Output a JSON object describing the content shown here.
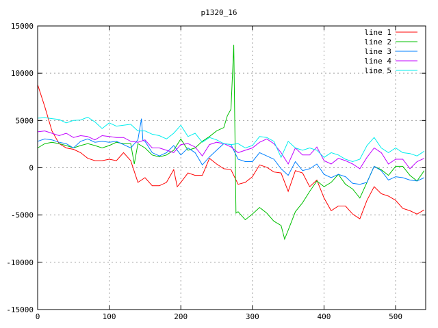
{
  "chart_data": {
    "type": "line",
    "title": "p1320_16",
    "xlabel": "",
    "ylabel": "",
    "xlim": [
      0,
      542
    ],
    "ylim": [
      -15000,
      15000
    ],
    "xticks": [
      0,
      100,
      200,
      300,
      400,
      500
    ],
    "yticks": [
      -15000,
      -10000,
      -5000,
      0,
      5000,
      10000,
      15000
    ],
    "grid": true,
    "legend_position": "top-right",
    "series": [
      {
        "name": "line 1",
        "color": "#ff0000",
        "x": [
          0,
          10,
          20,
          30,
          40,
          50,
          60,
          70,
          80,
          90,
          100,
          110,
          120,
          130,
          140,
          150,
          160,
          170,
          180,
          190,
          195,
          200,
          210,
          220,
          230,
          240,
          250,
          260,
          270,
          280,
          290,
          300,
          310,
          320,
          330,
          340,
          350,
          360,
          370,
          380,
          390,
          400,
          410,
          420,
          430,
          440,
          450,
          460,
          470,
          480,
          490,
          500,
          510,
          520,
          530,
          540
        ],
        "y": [
          8800,
          6450,
          3900,
          2550,
          2100,
          1950,
          1600,
          1000,
          750,
          750,
          900,
          750,
          1600,
          750,
          -1550,
          -1050,
          -1900,
          -1900,
          -1550,
          -200,
          -2000,
          -1550,
          -550,
          -800,
          -800,
          1000,
          400,
          -100,
          -200,
          -1750,
          -1550,
          -950,
          300,
          50,
          -450,
          -550,
          -2500,
          -300,
          -550,
          -2000,
          -1300,
          -3200,
          -4550,
          -4050,
          -4050,
          -4900,
          -5400,
          -3450,
          -2000,
          -2750,
          -3000,
          -3450,
          -4300,
          -4550,
          -4900,
          -4450
        ]
      },
      {
        "name": "line 2",
        "color": "#00c000",
        "x": [
          0,
          10,
          20,
          30,
          40,
          50,
          60,
          70,
          80,
          90,
          100,
          110,
          120,
          130,
          135,
          140,
          150,
          160,
          170,
          180,
          190,
          200,
          210,
          220,
          230,
          240,
          250,
          260,
          265,
          270,
          274,
          277,
          280,
          290,
          300,
          310,
          320,
          330,
          340,
          345,
          350,
          360,
          370,
          380,
          390,
          400,
          410,
          420,
          430,
          440,
          450,
          460,
          470,
          480,
          490,
          500,
          510,
          520,
          530,
          540
        ],
        "y": [
          2100,
          2550,
          2700,
          2550,
          2350,
          2100,
          2350,
          2550,
          2350,
          2100,
          2350,
          2700,
          2550,
          2550,
          400,
          2550,
          2100,
          1350,
          1150,
          1350,
          1850,
          3050,
          1850,
          2100,
          2800,
          3300,
          3900,
          4250,
          5500,
          6200,
          13000,
          -4800,
          -4650,
          -5500,
          -4900,
          -4200,
          -4800,
          -5650,
          -6100,
          -7550,
          -6600,
          -4650,
          -3700,
          -2500,
          -1400,
          -2000,
          -1550,
          -700,
          -1750,
          -2250,
          -3200,
          -1550,
          150,
          -200,
          -800,
          150,
          150,
          -800,
          -1400,
          -300
        ]
      },
      {
        "name": "line 3",
        "color": "#0080ff",
        "x": [
          0,
          10,
          20,
          30,
          40,
          50,
          60,
          70,
          80,
          90,
          100,
          110,
          120,
          130,
          140,
          145,
          147,
          150,
          160,
          170,
          180,
          190,
          200,
          210,
          220,
          230,
          240,
          250,
          260,
          270,
          280,
          290,
          300,
          310,
          320,
          330,
          340,
          350,
          360,
          370,
          380,
          390,
          400,
          410,
          420,
          430,
          440,
          450,
          460,
          470,
          480,
          490,
          500,
          510,
          520,
          530,
          540
        ],
        "y": [
          2800,
          3050,
          2950,
          2700,
          2550,
          2100,
          2800,
          3050,
          2700,
          2800,
          2700,
          2800,
          2450,
          2100,
          2950,
          5200,
          2900,
          2800,
          1600,
          1250,
          1600,
          2350,
          1350,
          2100,
          1600,
          300,
          1150,
          1850,
          2550,
          2450,
          900,
          650,
          650,
          1600,
          1250,
          900,
          -100,
          -800,
          650,
          -300,
          -100,
          400,
          -700,
          -1050,
          -700,
          -950,
          -1650,
          -1750,
          -1550,
          150,
          -300,
          -1300,
          -950,
          -1050,
          -1300,
          -1400,
          -1050
        ]
      },
      {
        "name": "line 4",
        "color": "#c000ff",
        "x": [
          0,
          10,
          20,
          30,
          40,
          50,
          60,
          70,
          80,
          90,
          100,
          110,
          120,
          130,
          140,
          150,
          160,
          170,
          180,
          190,
          200,
          210,
          220,
          230,
          240,
          250,
          260,
          270,
          280,
          290,
          300,
          310,
          320,
          330,
          340,
          350,
          360,
          370,
          380,
          390,
          400,
          410,
          420,
          430,
          440,
          450,
          460,
          470,
          480,
          490,
          500,
          510,
          520,
          530,
          540
        ],
        "y": [
          3800,
          3900,
          3650,
          3400,
          3650,
          3200,
          3400,
          3300,
          2950,
          3400,
          3300,
          3200,
          3200,
          2800,
          2700,
          2950,
          2100,
          2100,
          1850,
          1600,
          2450,
          2550,
          2200,
          1250,
          2450,
          2700,
          2550,
          2200,
          1600,
          1850,
          2100,
          2700,
          3050,
          2550,
          1600,
          400,
          2100,
          1350,
          1350,
          2200,
          750,
          400,
          1000,
          750,
          400,
          -100,
          1100,
          2100,
          1600,
          400,
          900,
          900,
          -100,
          650,
          1000
        ]
      },
      {
        "name": "line 5",
        "color": "#00eeee",
        "x": [
          0,
          10,
          20,
          30,
          40,
          50,
          60,
          70,
          80,
          90,
          100,
          110,
          120,
          130,
          140,
          150,
          160,
          170,
          180,
          190,
          200,
          210,
          220,
          230,
          240,
          250,
          260,
          270,
          280,
          290,
          300,
          310,
          320,
          330,
          340,
          350,
          360,
          370,
          380,
          390,
          400,
          410,
          420,
          430,
          440,
          450,
          460,
          470,
          480,
          490,
          500,
          510,
          520,
          530,
          540
        ],
        "y": [
          5250,
          5300,
          5200,
          5100,
          4750,
          5000,
          5050,
          5350,
          4850,
          4150,
          4750,
          4400,
          4500,
          4600,
          3900,
          3900,
          3550,
          3400,
          3050,
          3650,
          4500,
          3300,
          3650,
          2700,
          3200,
          2950,
          2550,
          2450,
          2550,
          2100,
          2350,
          3300,
          3200,
          2800,
          1100,
          2800,
          2100,
          1850,
          2100,
          1850,
          1100,
          1600,
          1350,
          900,
          650,
          900,
          2350,
          3200,
          2100,
          1600,
          2100,
          1600,
          1500,
          1250,
          1750
        ]
      }
    ]
  }
}
